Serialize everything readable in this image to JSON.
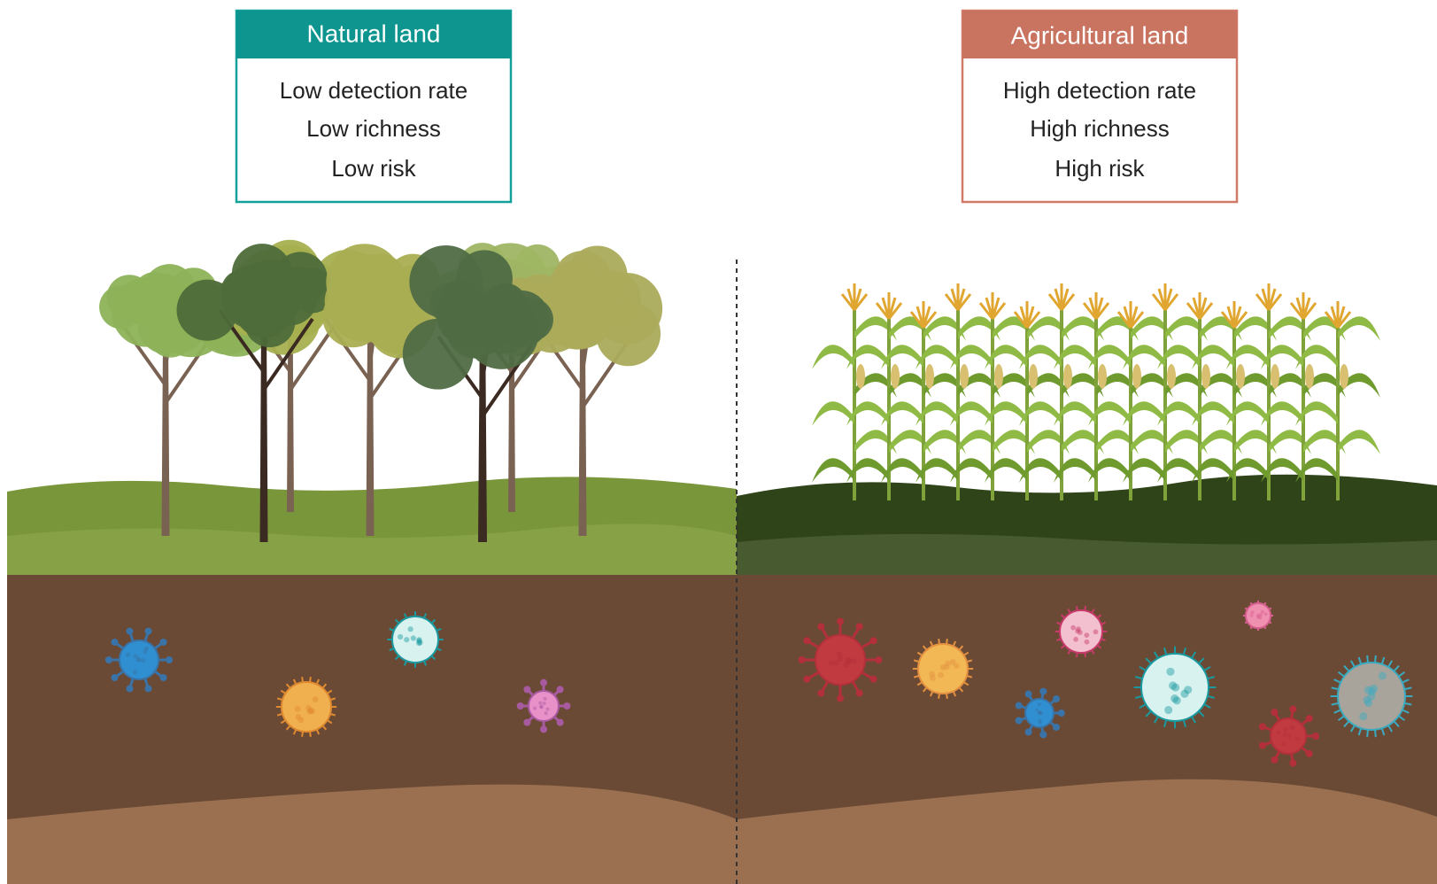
{
  "natural": {
    "title": "Natural land",
    "lines": [
      "Low detection rate",
      "Low richness",
      "Low risk"
    ]
  },
  "agricultural": {
    "title": "Agricultural land",
    "lines": [
      "High detection rate",
      "High richness",
      "High risk"
    ]
  }
}
